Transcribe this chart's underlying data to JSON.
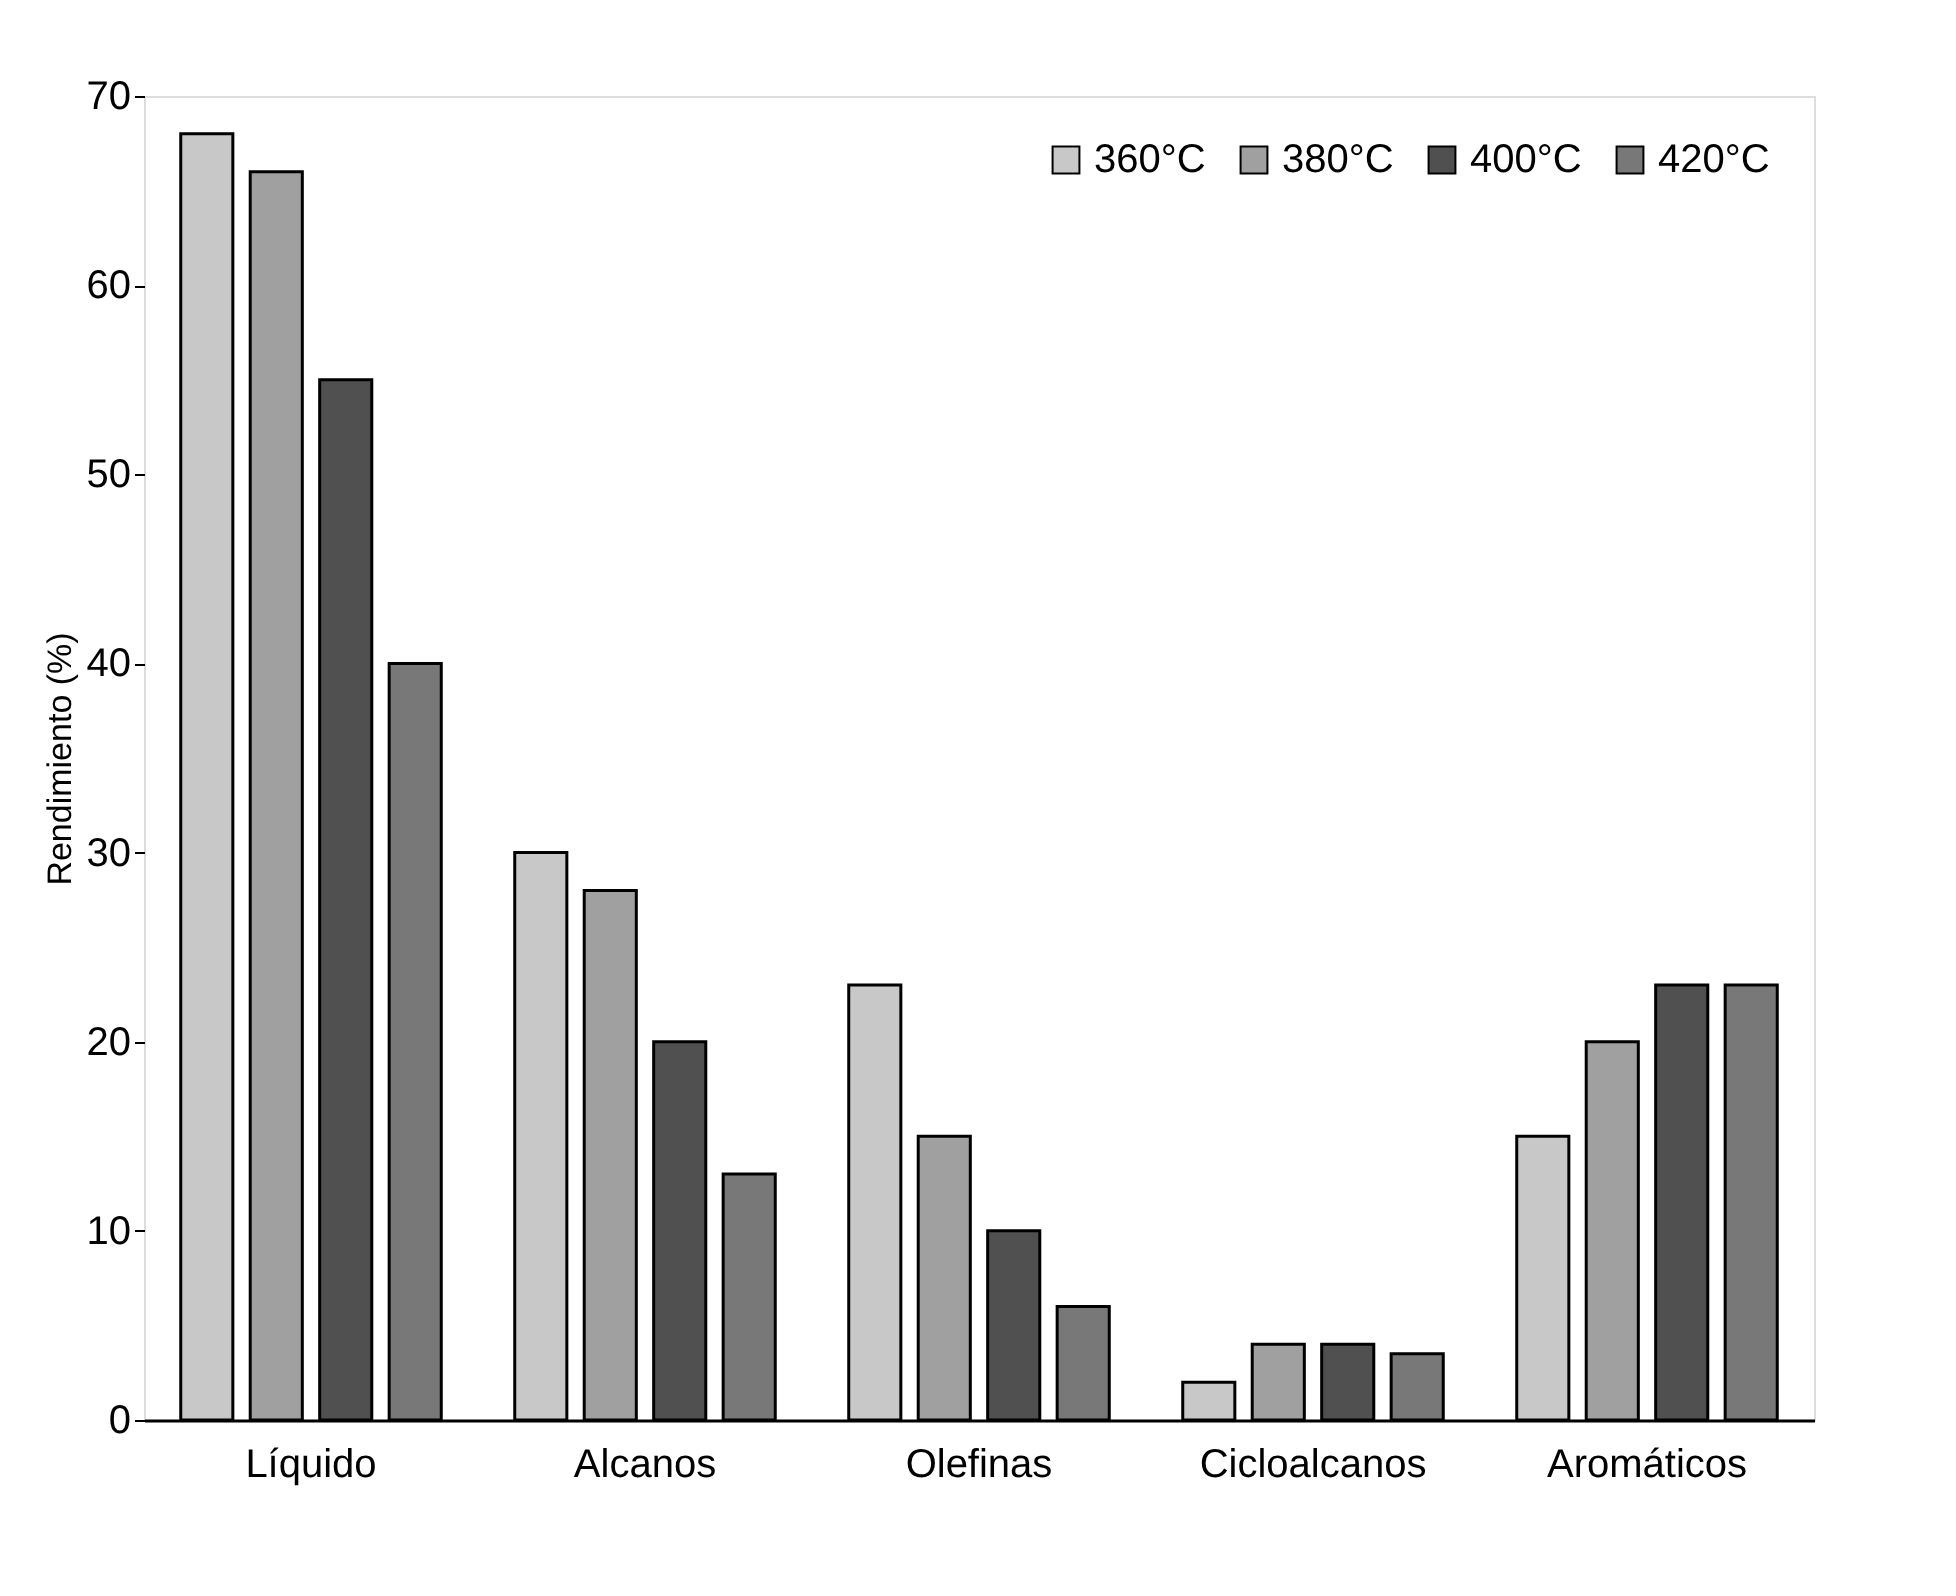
{
  "chart_data": {
    "type": "bar",
    "ylabel": "Rendimiento (%)",
    "categories": [
      "Líquido",
      "Alcanos",
      "Olefinas",
      "Cicloalcanos",
      "Aromáticos"
    ],
    "series": [
      {
        "name": "360°C",
        "color": "#c8c8c8",
        "values": [
          68,
          30,
          23,
          2,
          15
        ]
      },
      {
        "name": "380°C",
        "color": "#a0a0a0",
        "values": [
          66,
          28,
          15,
          4,
          20
        ]
      },
      {
        "name": "400°C",
        "color": "#505050",
        "values": [
          55,
          20,
          10,
          4,
          23
        ]
      },
      {
        "name": "420°C",
        "color": "#787878",
        "values": [
          40,
          13,
          6,
          3.5,
          23
        ]
      }
    ],
    "ylim": [
      0,
      70
    ],
    "yticks": [
      0,
      10,
      20,
      30,
      40,
      50,
      60,
      70
    ],
    "grid": false,
    "legend": "top right"
  }
}
